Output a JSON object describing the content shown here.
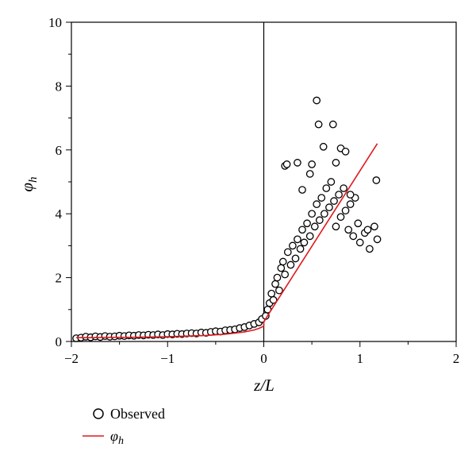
{
  "chart_data": {
    "type": "scatter",
    "xlim": [
      -2,
      2
    ],
    "ylim": [
      0,
      10
    ],
    "x_ticks": [
      -2,
      -1,
      0,
      1,
      2
    ],
    "y_ticks": [
      0,
      2,
      4,
      6,
      8,
      10
    ],
    "x_tick_labels": [
      "−2",
      "−1",
      "0",
      "1",
      "2"
    ],
    "y_tick_labels": [
      "0",
      "2",
      "4",
      "6",
      "8",
      "10"
    ],
    "xlabel": "z/L",
    "ylabel": "φh",
    "xlabel_main": "z/L",
    "ylabel_main": "φ",
    "ylabel_sub": "h",
    "vertical_reference_line": 0,
    "grid": false,
    "legend_position": "bottom-left",
    "series": [
      {
        "name": "Observed",
        "kind": "markers",
        "marker": "open-circle",
        "color": "#000000",
        "description_points": "dense scatter of observations",
        "x": [
          -1.95,
          -1.9,
          -1.85,
          -1.8,
          -1.75,
          -1.7,
          -1.65,
          -1.6,
          -1.55,
          -1.5,
          -1.45,
          -1.4,
          -1.35,
          -1.3,
          -1.25,
          -1.2,
          -1.15,
          -1.1,
          -1.05,
          -1.0,
          -0.95,
          -0.9,
          -0.85,
          -0.8,
          -0.75,
          -0.7,
          -0.65,
          -0.6,
          -0.55,
          -0.5,
          -0.45,
          -0.4,
          -0.35,
          -0.3,
          -0.25,
          -0.2,
          -0.15,
          -0.1,
          -0.05,
          -0.02,
          0.02,
          0.04,
          0.06,
          0.08,
          0.1,
          0.12,
          0.14,
          0.16,
          0.18,
          0.2,
          0.22,
          0.25,
          0.28,
          0.3,
          0.33,
          0.35,
          0.38,
          0.4,
          0.42,
          0.45,
          0.48,
          0.5,
          0.53,
          0.55,
          0.58,
          0.6,
          0.63,
          0.65,
          0.68,
          0.7,
          0.73,
          0.75,
          0.78,
          0.8,
          0.83,
          0.85,
          0.88,
          0.9,
          0.93,
          0.95,
          0.98,
          1.0,
          1.05,
          1.1,
          1.15,
          0.55,
          0.57,
          0.72,
          0.8,
          0.85,
          0.22,
          0.24,
          0.35,
          0.4,
          0.48,
          0.5,
          0.62,
          0.75,
          0.9,
          1.08,
          1.17,
          1.18
        ],
        "y": [
          0.1,
          0.12,
          0.15,
          0.13,
          0.16,
          0.14,
          0.17,
          0.15,
          0.16,
          0.18,
          0.17,
          0.19,
          0.18,
          0.2,
          0.19,
          0.21,
          0.2,
          0.22,
          0.2,
          0.23,
          0.22,
          0.24,
          0.23,
          0.25,
          0.26,
          0.25,
          0.28,
          0.27,
          0.3,
          0.32,
          0.31,
          0.35,
          0.36,
          0.38,
          0.42,
          0.45,
          0.5,
          0.55,
          0.6,
          0.7,
          0.8,
          1.0,
          1.2,
          1.5,
          1.3,
          1.8,
          2.0,
          1.6,
          2.3,
          2.5,
          2.1,
          2.8,
          2.4,
          3.0,
          2.6,
          3.2,
          2.9,
          3.5,
          3.1,
          3.7,
          3.3,
          4.0,
          3.6,
          4.3,
          3.8,
          4.5,
          4.0,
          4.8,
          4.2,
          5.0,
          4.4,
          3.6,
          4.6,
          3.9,
          4.8,
          4.1,
          3.5,
          4.3,
          3.3,
          4.5,
          3.7,
          3.1,
          3.4,
          2.9,
          3.6,
          7.55,
          6.8,
          6.8,
          6.05,
          5.95,
          5.5,
          5.55,
          5.6,
          4.75,
          5.25,
          5.55,
          6.1,
          5.6,
          4.6,
          3.5,
          5.05,
          3.2
        ]
      },
      {
        "name": "φh",
        "kind": "line",
        "color": "#e0191c",
        "x": [
          -1.95,
          -1.8,
          -1.6,
          -1.4,
          -1.2,
          -1.0,
          -0.8,
          -0.6,
          -0.4,
          -0.3,
          -0.2,
          -0.1,
          -0.05,
          0.0,
          0.0,
          1.18
        ],
        "y": [
          0.12,
          0.12,
          0.13,
          0.13,
          0.14,
          0.15,
          0.17,
          0.19,
          0.23,
          0.26,
          0.3,
          0.36,
          0.41,
          0.48,
          0.62,
          6.2
        ]
      }
    ]
  }
}
